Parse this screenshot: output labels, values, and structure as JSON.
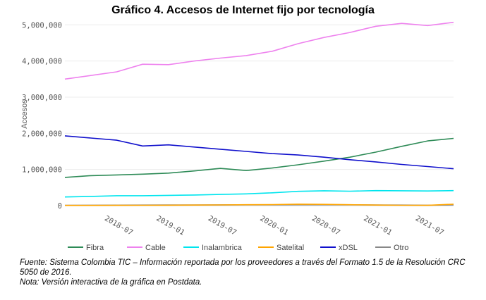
{
  "chart_data": {
    "type": "line",
    "title": "Gráfico 4. Accesos de Internet fijo por tecnología",
    "ylabel": "Accesos",
    "xlabel": "",
    "ylim": [
      0,
      5200000
    ],
    "yticks": [
      0,
      1000000,
      2000000,
      3000000,
      4000000,
      5000000
    ],
    "ytick_labels": [
      "0",
      "1,000,000",
      "2,000,000",
      "3,000,000",
      "4,000,000",
      "5,000,000"
    ],
    "xtick_labels": [
      "2018-07",
      "2019-01",
      "2019-07",
      "2020-01",
      "2020-07",
      "2021-01",
      "2021-07"
    ],
    "x": [
      "2018-01",
      "2018-04",
      "2018-07",
      "2018-10",
      "2019-01",
      "2019-04",
      "2019-07",
      "2019-10",
      "2020-01",
      "2020-04",
      "2020-07",
      "2020-10",
      "2021-01",
      "2021-04",
      "2021-07",
      "2021-10"
    ],
    "grid": true,
    "legend_position": "bottom",
    "series": [
      {
        "name": "Fibra",
        "color": "#2e8b57",
        "values": [
          780000,
          830000,
          850000,
          870000,
          900000,
          960000,
          1030000,
          970000,
          1040000,
          1130000,
          1230000,
          1340000,
          1480000,
          1640000,
          1790000,
          1860000
        ]
      },
      {
        "name": "Cable",
        "color": "#ee82ee",
        "values": [
          3500000,
          3600000,
          3700000,
          3910000,
          3900000,
          4000000,
          4080000,
          4150000,
          4270000,
          4480000,
          4650000,
          4790000,
          4960000,
          5040000,
          4980000,
          5070000
        ]
      },
      {
        "name": "Inalambrica",
        "color": "#00e5ee",
        "values": [
          240000,
          255000,
          275000,
          275000,
          285000,
          295000,
          310000,
          325000,
          355000,
          395000,
          410000,
          400000,
          415000,
          410000,
          405000,
          415000
        ]
      },
      {
        "name": "Satelital",
        "color": "#ffa500",
        "values": [
          5000,
          6000,
          8000,
          10000,
          12000,
          15000,
          20000,
          25000,
          30000,
          40000,
          35000,
          25000,
          15000,
          10000,
          8000,
          40000
        ]
      },
      {
        "name": "xDSL",
        "color": "#1010cc",
        "values": [
          1930000,
          1870000,
          1810000,
          1650000,
          1680000,
          1620000,
          1560000,
          1500000,
          1440000,
          1400000,
          1340000,
          1270000,
          1210000,
          1140000,
          1080000,
          1020000
        ]
      },
      {
        "name": "Otro",
        "color": "#888888",
        "values": [
          10000,
          12000,
          14000,
          16000,
          18000,
          20000,
          22000,
          24000,
          24000,
          26000,
          26000,
          24000,
          20000,
          16000,
          12000,
          20000
        ]
      }
    ]
  },
  "footnote": {
    "line1": "Fuente: Sistema Colombia TIC – Información reportada por los proveedores a través del Formato 1.5 de la Resolución CRC",
    "line2": "5050 de 2016.",
    "line3": "Nota: Versión interactiva de la gráfica en Postdata."
  }
}
